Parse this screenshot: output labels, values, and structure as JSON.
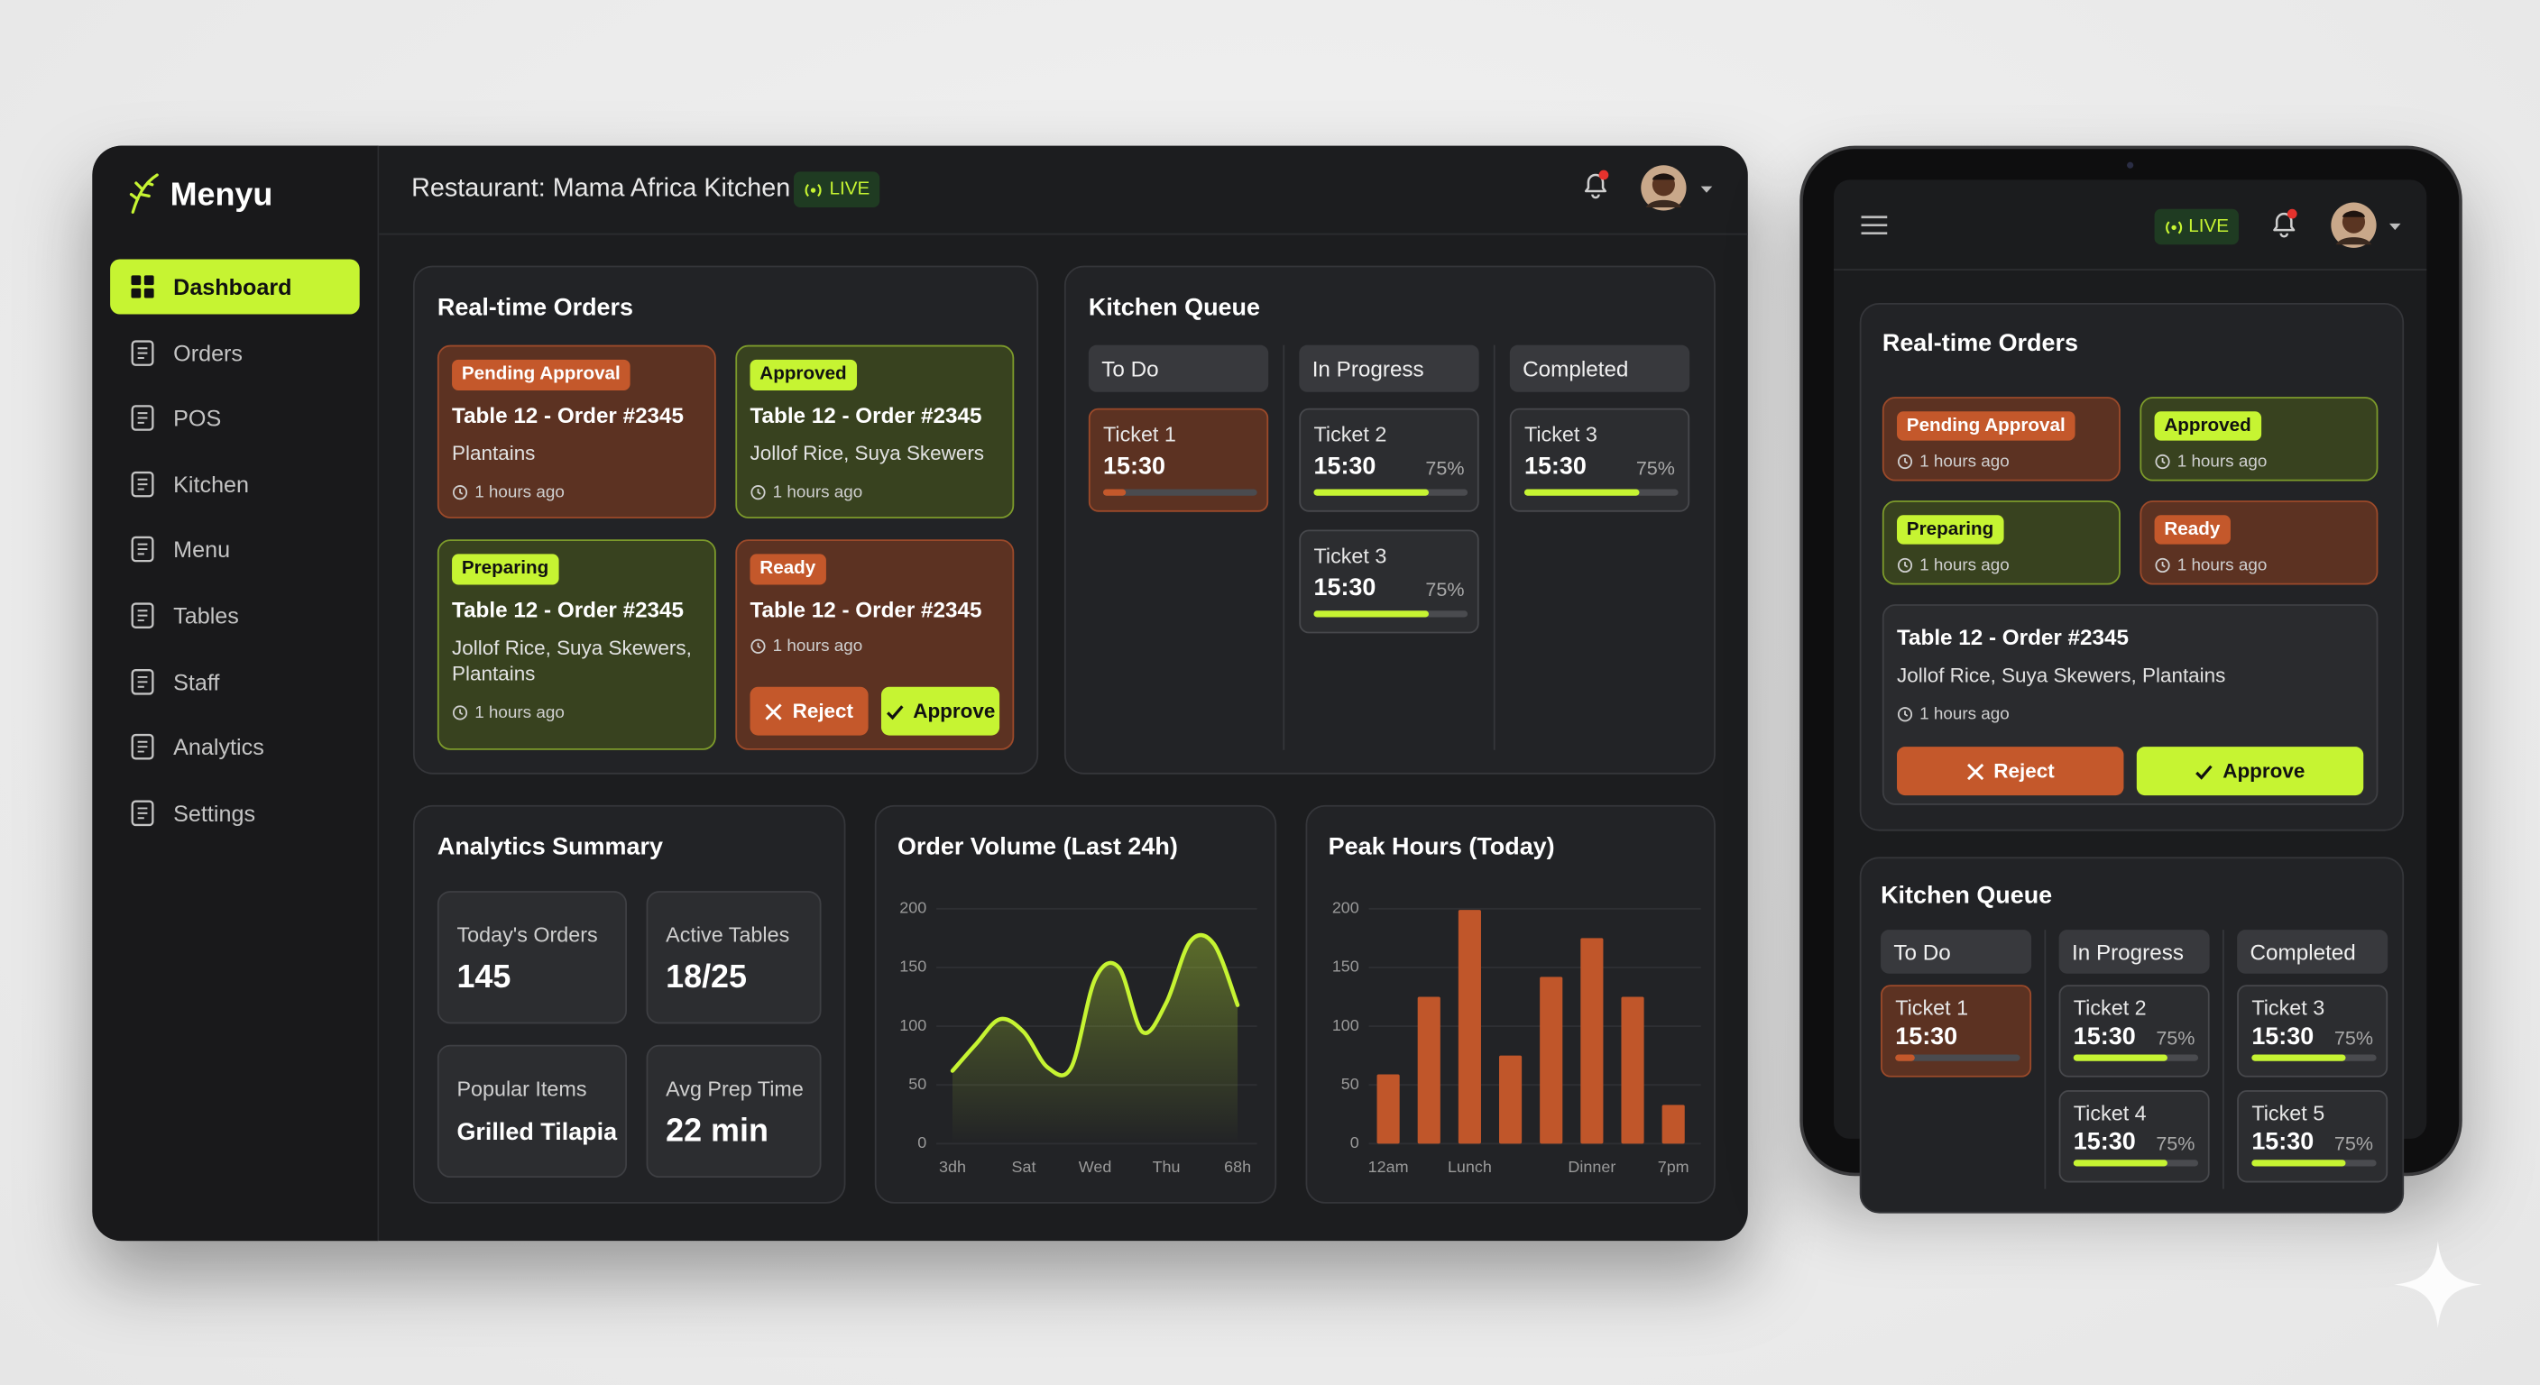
{
  "brand": "Menyu",
  "sidebar": {
    "items": [
      "Dashboard",
      "Orders",
      "POS",
      "Kitchen",
      "Menu",
      "Tables",
      "Staff",
      "Analytics",
      "Settings"
    ]
  },
  "header": {
    "restaurant": "Restaurant: Mama Africa Kitchen",
    "live": "LIVE"
  },
  "orders": {
    "title": "Real-time Orders",
    "cards": [
      {
        "status": "Pending Approval",
        "tone": "orange",
        "table": "Table 12 - Order #2345",
        "items": "Plantains",
        "time": "1 hours ago"
      },
      {
        "status": "Approved",
        "tone": "green",
        "table": "Table 12 - Order #2345",
        "items": "Jollof Rice, Suya Skewers",
        "time": "1 hours ago"
      },
      {
        "status": "Preparing",
        "tone": "green",
        "table": "Table 12 - Order #2345",
        "items": "Jollof Rice, Suya Skewers, Plantains",
        "time": "1 hours ago"
      },
      {
        "status": "Ready",
        "tone": "orange",
        "table": "Table 12 - Order #2345",
        "time": "1 hours ago",
        "actions": [
          "Reject",
          "Approve"
        ]
      }
    ]
  },
  "kitchen": {
    "title": "Kitchen Queue",
    "columns": [
      {
        "name": "To Do",
        "color": "#c4582b",
        "tickets": [
          {
            "name": "Ticket 1",
            "time": "15:30",
            "progress": 15
          }
        ]
      },
      {
        "name": "In Progress",
        "color": "#c6f432",
        "tickets": [
          {
            "name": "Ticket 2",
            "time": "15:30",
            "progress": 75,
            "progress_label": "75%"
          },
          {
            "name": "Ticket 3",
            "time": "15:30",
            "progress": 75,
            "progress_label": "75%"
          }
        ]
      },
      {
        "name": "Completed",
        "color": "#c6f432",
        "tickets": [
          {
            "name": "Ticket 3",
            "time": "15:30",
            "progress": 75,
            "progress_label": "75%"
          }
        ]
      }
    ]
  },
  "analytics": {
    "title": "Analytics Summary",
    "stats": [
      {
        "label": "Today's Orders",
        "value": 145
      },
      {
        "label": "Active Tables",
        "value": "18/25"
      },
      {
        "label": "Popular Items",
        "value": "Grilled Tilapia"
      },
      {
        "label": "Avg Prep Time",
        "value": "22 min"
      }
    ]
  },
  "chart_data": [
    {
      "type": "line",
      "title": "Order Volume (Last 24h)",
      "color": "#c6f432",
      "categories": [
        "3dh",
        null,
        null,
        "Sat",
        null,
        null,
        "Wed",
        null,
        null,
        "Thu",
        null,
        null,
        "68h"
      ],
      "values": [
        62,
        85,
        106,
        95,
        65,
        65,
        140,
        150,
        95,
        120,
        172,
        170,
        118
      ],
      "ylim": [
        0,
        200
      ],
      "yticks": [
        0,
        50,
        100,
        150,
        200
      ],
      "grid": true
    },
    {
      "type": "bar",
      "title": "Peak Hours (Today)",
      "color": "#c0562a",
      "categories": [
        "12am",
        null,
        "Lunch",
        null,
        null,
        "Dinner",
        null,
        "7pm"
      ],
      "values": [
        59,
        125,
        199,
        75,
        142,
        175,
        125,
        33
      ],
      "ylim": [
        0,
        200
      ],
      "yticks": [
        0,
        50,
        100,
        150,
        200
      ],
      "grid": true
    }
  ],
  "tablet": {
    "live": "LIVE",
    "orders": {
      "title": "Real-time Orders",
      "cards": [
        {
          "status": "Pending Approval",
          "tone": "orange",
          "time": "1 hours ago"
        },
        {
          "status": "Approved",
          "tone": "green",
          "time": "1 hours ago"
        },
        {
          "status": "Preparing",
          "tone": "green",
          "time": "1 hours ago"
        },
        {
          "status": "Ready",
          "tone": "orange",
          "time": "1 hours ago"
        }
      ],
      "detail": {
        "table": "Table 12 - Order #2345",
        "items": "Jollof Rice, Suya Skewers, Plantains",
        "time": "1 hours ago",
        "actions": [
          "Reject",
          "Approve"
        ]
      }
    },
    "kitchen": {
      "title": "Kitchen Queue",
      "columns": [
        {
          "name": "To Do",
          "color": "#c4582b",
          "tickets": [
            {
              "name": "Ticket 1",
              "time": "15:30",
              "progress": 15
            }
          ]
        },
        {
          "name": "In Progress",
          "color": "#c6f432",
          "tickets": [
            {
              "name": "Ticket 2",
              "time": "15:30",
              "progress": 75,
              "progress_label": "75%"
            },
            {
              "name": "Ticket 4",
              "time": "15:30",
              "progress": 75,
              "progress_label": "75%"
            }
          ]
        },
        {
          "name": "Completed",
          "color": "#c6f432",
          "tickets": [
            {
              "name": "Ticket 3",
              "time": "15:30",
              "progress": 75,
              "progress_label": "75%"
            },
            {
              "name": "Ticket 5",
              "time": "15:30",
              "progress": 75,
              "progress_label": "75%"
            }
          ]
        }
      ]
    }
  }
}
